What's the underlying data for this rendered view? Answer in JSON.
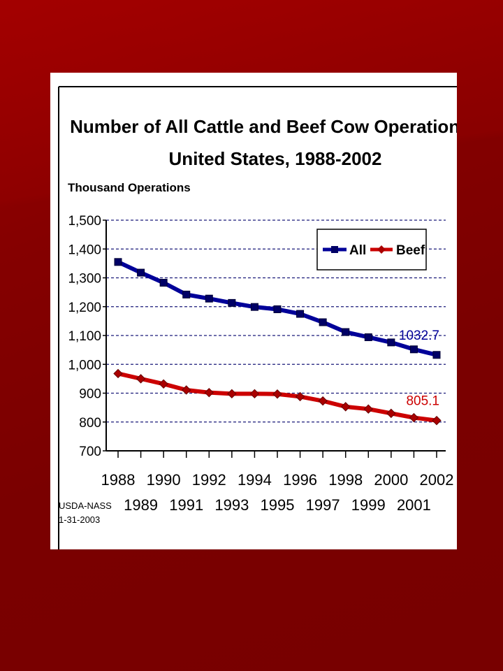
{
  "chart_data": {
    "type": "line",
    "title": "Number of All Cattle and Beef Cow Operations,",
    "subtitle": "United States, 1988-2002",
    "ylabel": "Thousand Operations",
    "ylim": [
      700,
      1500
    ],
    "yticks": [
      {
        "value": 1500,
        "label": "1,500"
      },
      {
        "value": 1400,
        "label": "1,400"
      },
      {
        "value": 1300,
        "label": "1,300"
      },
      {
        "value": 1200,
        "label": "1,200"
      },
      {
        "value": 1100,
        "label": "1,100"
      },
      {
        "value": 1000,
        "label": "1,000"
      },
      {
        "value": 900,
        "label": "900"
      },
      {
        "value": 800,
        "label": "800"
      },
      {
        "value": 700,
        "label": "700"
      }
    ],
    "x": [
      1988,
      1989,
      1990,
      1991,
      1992,
      1993,
      1994,
      1995,
      1996,
      1997,
      1998,
      1999,
      2000,
      2001,
      2002
    ],
    "xtick_labels_upper": [
      "1988",
      "1990",
      "1992",
      "1994",
      "1996",
      "1998",
      "2000",
      "2002"
    ],
    "xtick_labels_lower": [
      "1989",
      "1991",
      "1993",
      "1995",
      "1997",
      "1999",
      "2001"
    ],
    "series": [
      {
        "name": "All",
        "color": "#000099",
        "marker": "square",
        "values": [
          1355,
          1318,
          1283,
          1242,
          1228,
          1213,
          1199,
          1191,
          1175,
          1146,
          1112,
          1094,
          1076,
          1052,
          1032.7
        ],
        "end_label": "1032.7"
      },
      {
        "name": "Beef",
        "color": "#cc0000",
        "marker": "diamond",
        "values": [
          968,
          950,
          932,
          911,
          902,
          898,
          898,
          897,
          888,
          873,
          853,
          845,
          830,
          815,
          805.1
        ],
        "end_label": "805.1"
      }
    ],
    "grid": "horizontal dashed",
    "legend_position": "top-right",
    "source_note": [
      "USDA-NASS",
      "1-31-2003"
    ]
  }
}
